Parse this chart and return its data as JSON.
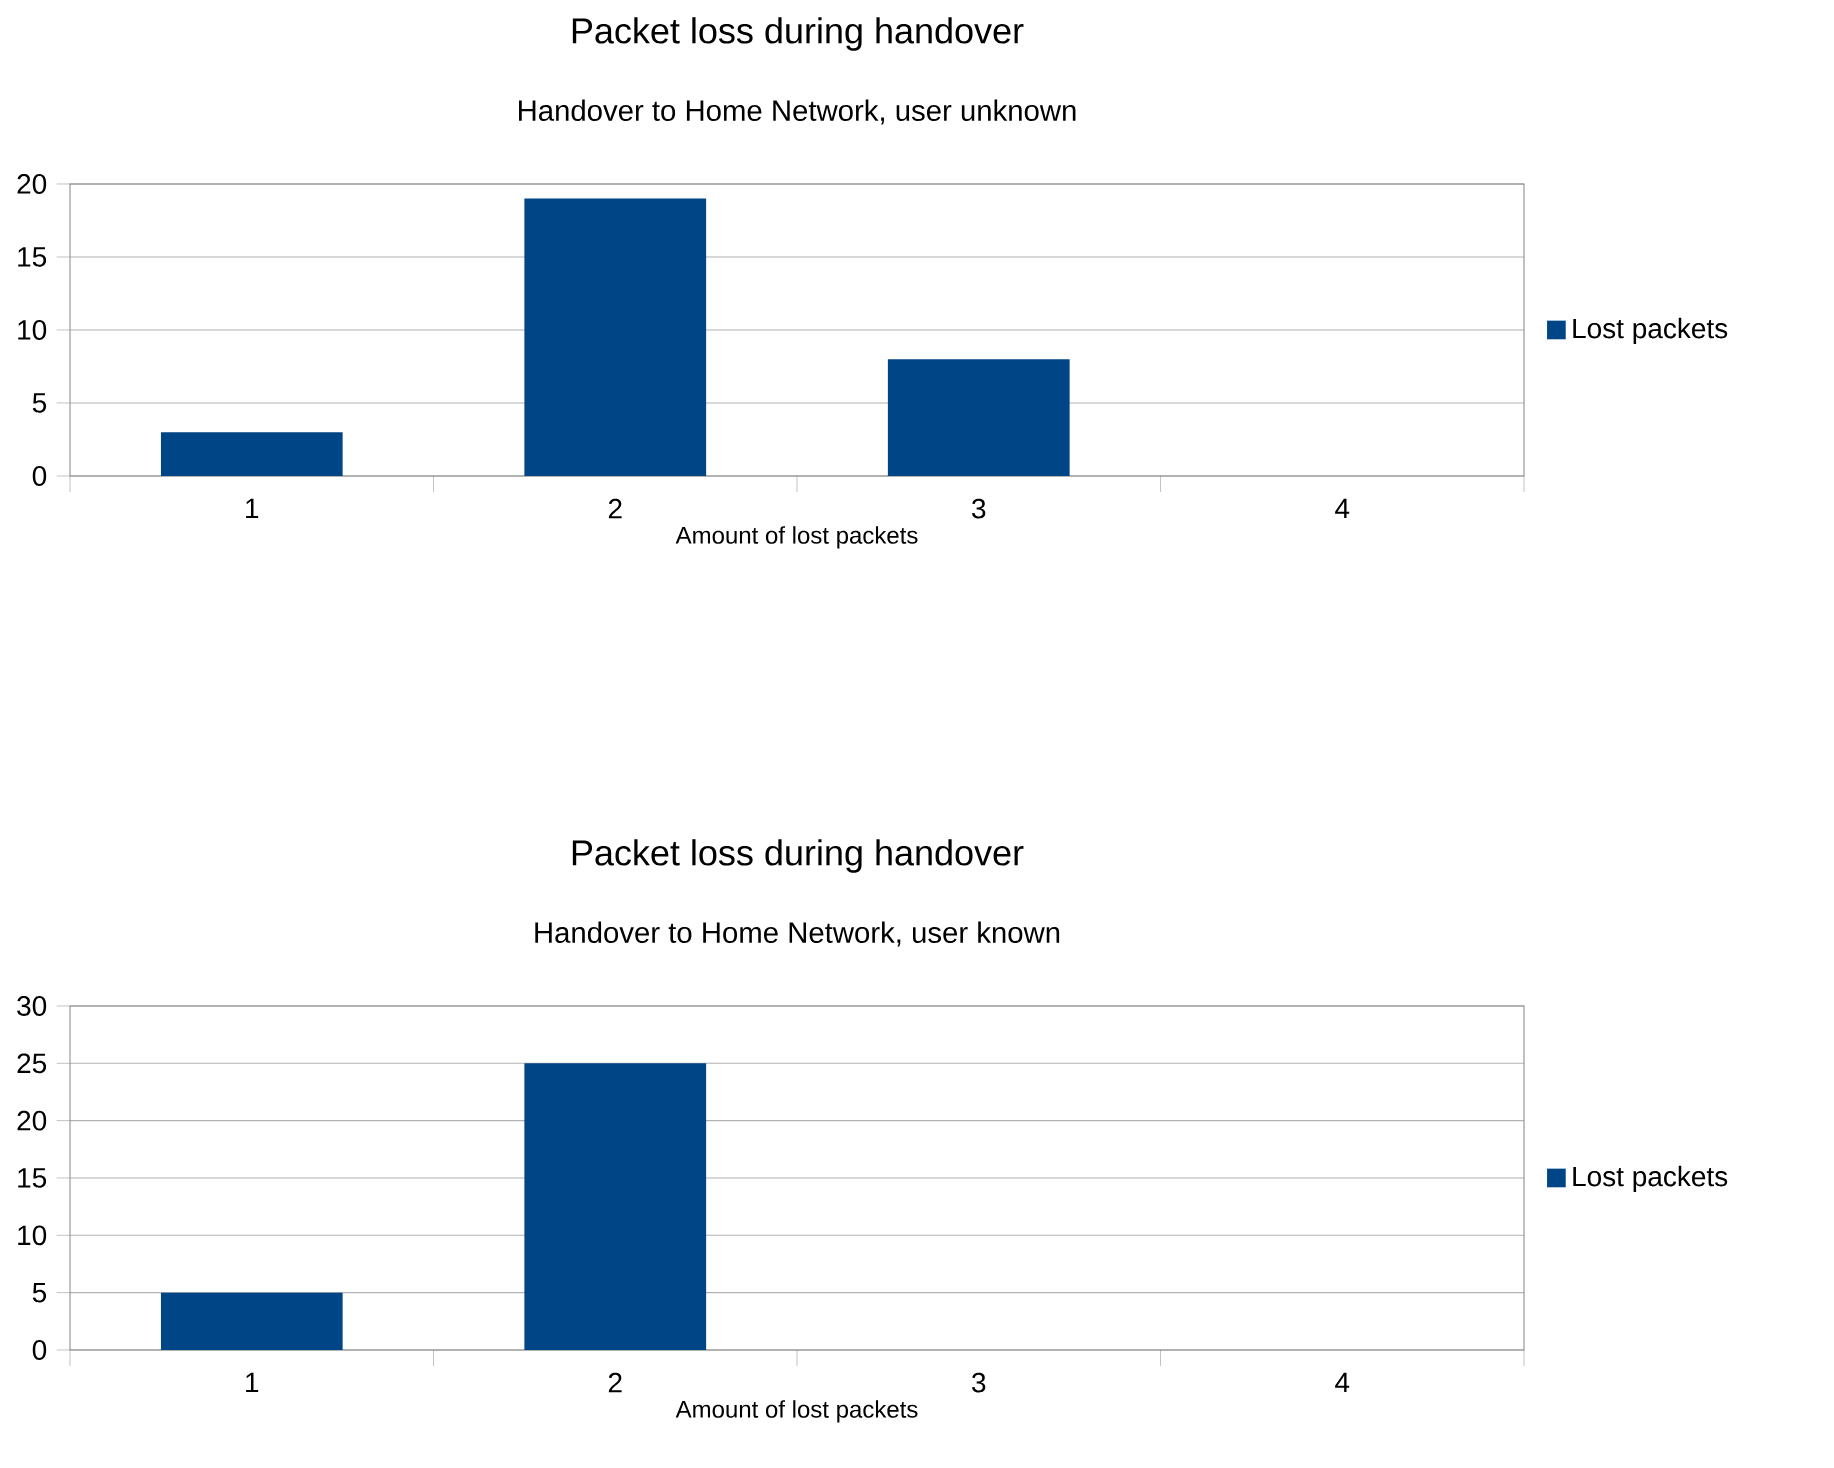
{
  "chart_data": [
    {
      "type": "bar",
      "title": "Packet loss during handover",
      "subtitle": "Handover to Home Network, user unknown",
      "xlabel": "Amount of lost packets",
      "categories": [
        "1",
        "2",
        "3",
        "4"
      ],
      "series": [
        {
          "name": "Lost packets",
          "color": "#004586",
          "values": [
            3,
            19,
            8,
            0
          ]
        }
      ],
      "ylim": [
        0,
        20
      ],
      "yticks": [
        0,
        5,
        10,
        15,
        20
      ],
      "grid": "y",
      "legend": "right"
    },
    {
      "type": "bar",
      "title": "Packet loss during handover",
      "subtitle": "Handover to Home Network, user known",
      "xlabel": "Amount of lost packets",
      "categories": [
        "1",
        "2",
        "3",
        "4"
      ],
      "series": [
        {
          "name": "Lost packets",
          "color": "#004586",
          "values": [
            5,
            25,
            0,
            0
          ]
        }
      ],
      "ylim": [
        0,
        30
      ],
      "yticks": [
        0,
        5,
        10,
        15,
        20,
        25,
        30
      ],
      "grid": "y",
      "legend": "right"
    }
  ]
}
